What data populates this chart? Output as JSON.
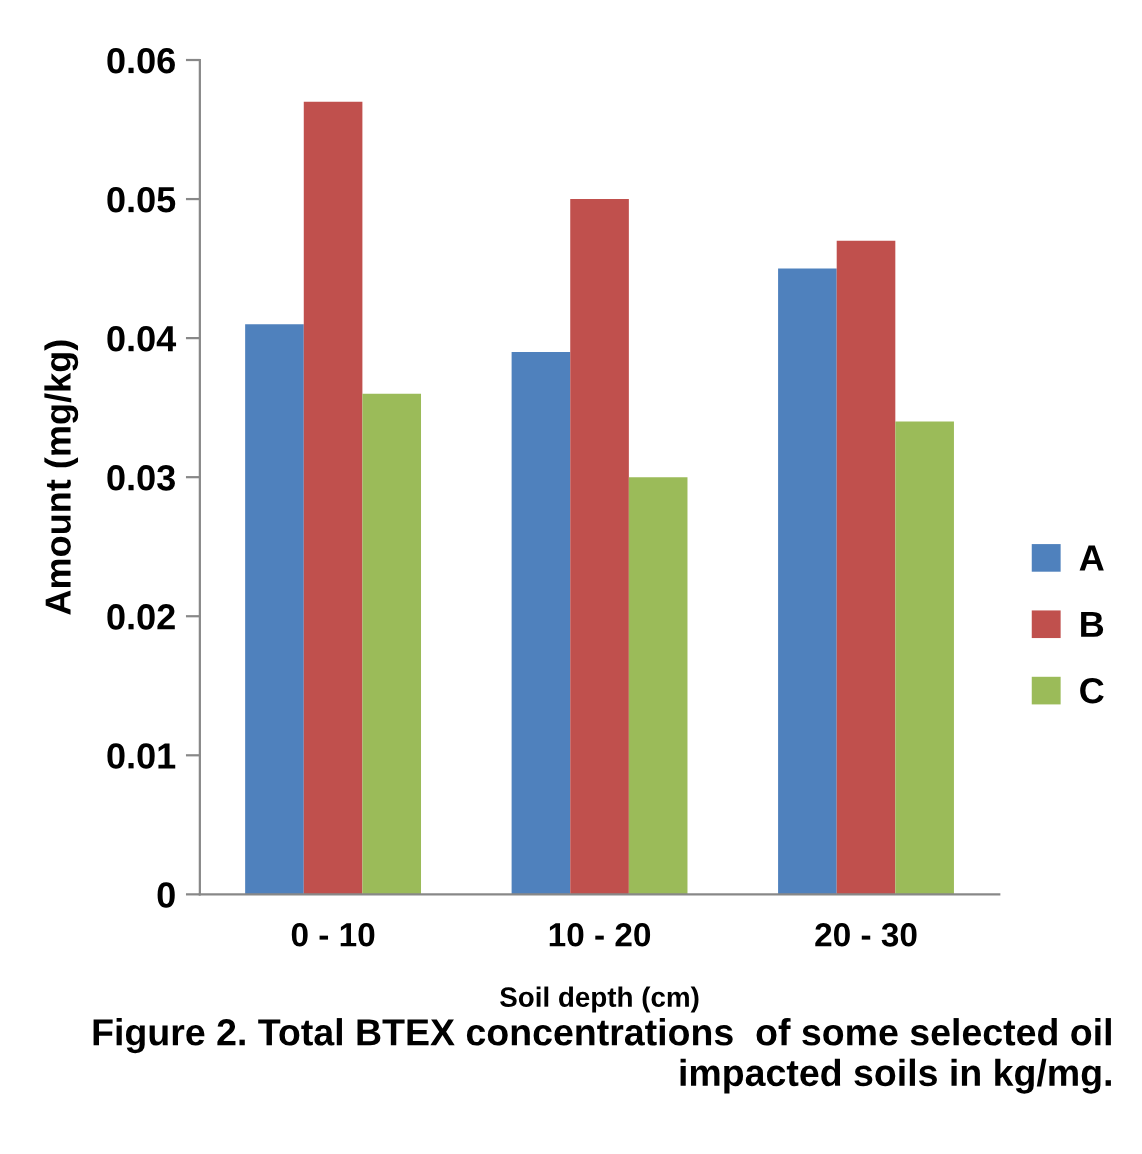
{
  "chart_data": {
    "type": "bar",
    "xlabel": "Soil depth (cm)",
    "ylabel": "Amount (mg/kg)",
    "categories": [
      "0 - 10",
      "10 - 20",
      "20 - 30"
    ],
    "series": [
      {
        "name": "A",
        "color": "#4f81bd",
        "values": [
          0.041,
          0.039,
          0.045
        ]
      },
      {
        "name": "B",
        "color": "#c0504d",
        "values": [
          0.057,
          0.05,
          0.047
        ]
      },
      {
        "name": "C",
        "color": "#9bbb59",
        "values": [
          0.036,
          0.03,
          0.034
        ]
      }
    ],
    "ylim": [
      0,
      0.06
    ],
    "yticks": [
      {
        "value": 0,
        "label": "0"
      },
      0.01,
      0.02,
      0.03,
      0.04,
      0.05,
      0.06
    ],
    "grid": false,
    "legend": "right",
    "annotations": [
      "Figure 2. Total BTEX concentrations  of some selected oil impacted soils in kg/mg."
    ]
  }
}
